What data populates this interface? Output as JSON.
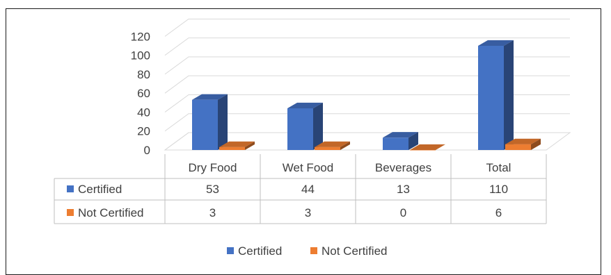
{
  "chart_data": {
    "type": "bar",
    "categories": [
      "Dry Food",
      "Wet Food",
      "Beverages",
      "Total"
    ],
    "series": [
      {
        "name": "Certified",
        "values": [
          53,
          44,
          13,
          110
        ],
        "color": "#4472C4"
      },
      {
        "name": "Not Certified",
        "values": [
          3,
          3,
          0,
          6
        ],
        "color": "#ED7D31"
      }
    ],
    "yticks": [
      0,
      20,
      40,
      60,
      80,
      100,
      120
    ],
    "ylim": [
      0,
      130
    ],
    "grid": true,
    "data_table": true,
    "legend_position": "bottom",
    "style": "3d-clustered-column"
  }
}
